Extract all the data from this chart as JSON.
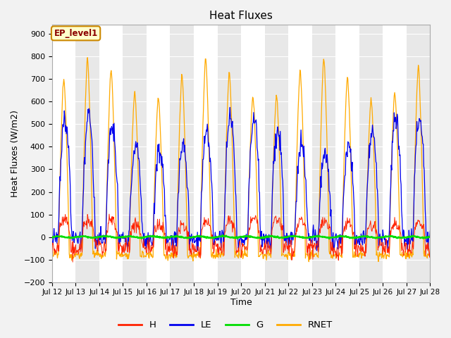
{
  "title": "Heat Fluxes",
  "xlabel": "Time",
  "ylabel": "Heat Fluxes (W/m2)",
  "ylim": [
    -200,
    940
  ],
  "yticks": [
    -200,
    -100,
    0,
    100,
    200,
    300,
    400,
    500,
    600,
    700,
    800,
    900
  ],
  "legend_label": "EP_level1",
  "series_colors": {
    "H": "#ff2200",
    "LE": "#0000ee",
    "G": "#00dd00",
    "RNET": "#ffaa00"
  },
  "bg_light": "#e8e8e8",
  "bg_dark": "#d0d0d0",
  "grid_color": "#ffffff",
  "n_days": 16,
  "start_day": 12,
  "end_day": 28,
  "figwidth": 6.4,
  "figheight": 4.8,
  "dpi": 100
}
